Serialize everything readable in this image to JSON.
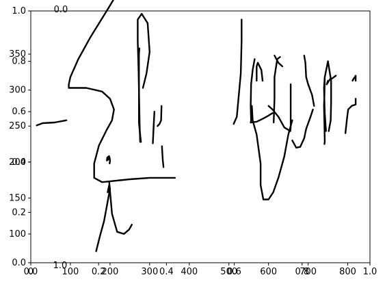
{
  "chart_data": {
    "type": "line",
    "title": "",
    "xlabel": "",
    "ylabel": "",
    "grid": false,
    "axes_overlay": [
      {
        "name": "unit-axes",
        "x_ticks": [
          "0.0",
          "0.2",
          "0.4",
          "0.6",
          "0.8",
          "1.0"
        ],
        "y_ticks": [
          "0.0",
          "0.2",
          "0.4",
          "0.6",
          "0.8",
          "1.0"
        ]
      },
      {
        "name": "data-axes",
        "x_ticks": [
          "0",
          "100",
          "200",
          "300",
          "400",
          "500",
          "600",
          "700",
          "800"
        ],
        "y_ticks": [
          "100",
          "150",
          "200",
          "250",
          "300",
          "350"
        ]
      },
      {
        "name": "stray-labels",
        "labels": [
          "0.0",
          "0.0",
          "1.0",
          "1.0"
        ]
      }
    ],
    "strokes_note": "",
    "series": [
      {
        "values": [
          [
            15,
            217
          ],
          [
            30,
            214
          ],
          [
            60,
            213
          ],
          [
            90,
            210
          ]
        ]
      },
      {
        "values": [
          [
            165,
            392
          ],
          [
            175,
            370
          ],
          [
            185,
            350
          ],
          [
            195,
            320
          ],
          [
            200,
            305
          ],
          [
            198,
            300
          ],
          [
            194,
            310
          ]
        ]
      },
      {
        "values": [
          [
            198,
            296
          ],
          [
            205,
            340
          ],
          [
            218,
            365
          ],
          [
            235,
            368
          ],
          [
            248,
            362
          ],
          [
            255,
            355
          ]
        ]
      },
      {
        "values": [
          [
            192,
            266
          ],
          [
            193,
            262
          ],
          [
            197,
            260
          ]
        ]
      },
      {
        "values": [
          [
            199,
            270
          ],
          [
            200,
            266
          ],
          [
            199,
            262
          ]
        ]
      },
      {
        "values": [
          [
            195,
            265
          ],
          [
            198,
            260
          ]
        ]
      },
      {
        "values": [
          [
            364,
            290
          ],
          [
            350,
            290
          ],
          [
            300,
            290
          ],
          [
            250,
            292
          ],
          [
            180,
            296
          ],
          [
            160,
            290
          ]
        ]
      },
      {
        "values": [
          [
            160,
            290
          ],
          [
            160,
            270
          ],
          [
            172,
            245
          ],
          [
            190,
            225
          ],
          [
            205,
            210
          ],
          [
            210,
            195
          ],
          [
            200,
            180
          ],
          [
            180,
            170
          ],
          [
            140,
            165
          ],
          [
            98,
            165
          ],
          [
            96,
            165
          ],
          [
            96,
            160
          ],
          [
            100,
            150
          ],
          [
            120,
            125
          ],
          [
            150,
            95
          ],
          [
            195,
            55
          ],
          [
            220,
            32
          ]
        ]
      },
      {
        "values": [
          [
            278,
            240
          ],
          [
            273,
            214
          ],
          [
            273,
            180
          ],
          [
            273,
            118
          ],
          [
            274,
            110
          ]
        ]
      },
      {
        "values": [
          [
            283,
            165
          ],
          [
            292,
            145
          ],
          [
            300,
            115
          ],
          [
            295,
            75
          ],
          [
            280,
            62
          ],
          [
            270,
            70
          ],
          [
            270,
            100
          ],
          [
            272,
            140
          ],
          [
            275,
            220
          ],
          [
            276,
            240
          ]
        ]
      },
      {
        "values": [
          [
            320,
            218
          ],
          [
            325,
            215
          ],
          [
            329,
            210
          ],
          [
            330,
            190
          ]
        ]
      },
      {
        "values": [
          [
            308,
            242
          ],
          [
            310,
            220
          ],
          [
            312,
            198
          ]
        ]
      },
      {
        "values": [
          [
            335,
            275
          ],
          [
            333,
            265
          ],
          [
            331,
            246
          ]
        ]
      },
      {
        "values": [
          [
            512,
            215
          ],
          [
            520,
            205
          ],
          [
            525,
            175
          ],
          [
            530,
            145
          ],
          [
            532,
            100
          ],
          [
            532,
            70
          ]
        ]
      },
      {
        "values": [
          [
            555,
            213
          ],
          [
            556,
            210
          ],
          [
            555,
            190
          ],
          [
            556,
            160
          ],
          [
            560,
            140
          ],
          [
            565,
            125
          ]
        ]
      },
      {
        "values": [
          [
            555,
            213
          ],
          [
            570,
            212
          ],
          [
            585,
            208
          ],
          [
            595,
            205
          ],
          [
            610,
            200
          ]
        ]
      },
      {
        "values": [
          [
            585,
            155
          ],
          [
            582,
            140
          ],
          [
            573,
            130
          ],
          [
            570,
            135
          ],
          [
            570,
            155
          ]
        ]
      },
      {
        "values": [
          [
            587,
            320
          ],
          [
            600,
            320
          ],
          [
            612,
            310
          ],
          [
            625,
            290
          ],
          [
            640,
            260
          ],
          [
            650,
            230
          ],
          [
            660,
            210
          ]
        ]
      },
      {
        "values": [
          [
            587,
            320
          ],
          [
            580,
            300
          ],
          [
            580,
            270
          ],
          [
            570,
            230
          ],
          [
            560,
            210
          ],
          [
            558,
            190
          ]
        ]
      },
      {
        "values": [
          [
            600,
            190
          ],
          [
            610,
            195
          ],
          [
            625,
            205
          ],
          [
            640,
            220
          ],
          [
            655,
            225
          ],
          [
            656,
            220
          ]
        ]
      },
      {
        "values": [
          [
            615,
            120
          ],
          [
            625,
            130
          ],
          [
            635,
            135
          ]
        ]
      },
      {
        "values": [
          [
            613,
            213
          ],
          [
            615,
            180
          ],
          [
            615,
            150
          ],
          [
            622,
            125
          ],
          [
            629,
            122
          ]
        ]
      },
      {
        "values": [
          [
            656,
            219
          ],
          [
            656,
            175
          ],
          [
            656,
            160
          ]
        ]
      },
      {
        "values": [
          [
            660,
            238
          ],
          [
            670,
            248
          ],
          [
            680,
            247
          ],
          [
            690,
            235
          ],
          [
            695,
            222
          ],
          [
            706,
            205
          ],
          [
            712,
            195
          ]
        ]
      },
      {
        "values": [
          [
            715,
            190
          ],
          [
            710,
            175
          ],
          [
            700,
            160
          ],
          [
            695,
            150
          ],
          [
            693,
            130
          ],
          [
            690,
            120
          ]
        ]
      },
      {
        "values": [
          [
            741,
            243
          ],
          [
            742,
            240
          ],
          [
            741,
            215
          ],
          [
            740,
            190
          ],
          [
            741,
            175
          ],
          [
            742,
            152
          ]
        ]
      },
      {
        "values": [
          [
            752,
            225
          ],
          [
            757,
            210
          ],
          [
            758,
            185
          ],
          [
            758,
            155
          ],
          [
            750,
            128
          ]
        ]
      },
      {
        "values": [
          [
            745,
            225
          ],
          [
            742,
            200
          ],
          [
            740,
            165
          ],
          [
            742,
            150
          ],
          [
            750,
            128
          ]
        ]
      },
      {
        "values": [
          [
            794,
            228
          ],
          [
            798,
            208
          ],
          [
            801,
            195
          ],
          [
            810,
            190
          ],
          [
            820,
            188
          ],
          [
            820,
            180
          ]
        ]
      },
      {
        "values": [
          [
            747,
            160
          ],
          [
            755,
            153
          ]
        ]
      },
      {
        "values": [
          [
            747,
            160
          ],
          [
            750,
            155
          ]
        ]
      },
      {
        "values": [
          [
            760,
            152
          ],
          [
            770,
            148
          ]
        ]
      },
      {
        "values": [
          [
            815,
            152
          ],
          [
            812,
            155
          ],
          [
            820,
            148
          ],
          [
            820,
            155
          ]
        ]
      }
    ]
  }
}
